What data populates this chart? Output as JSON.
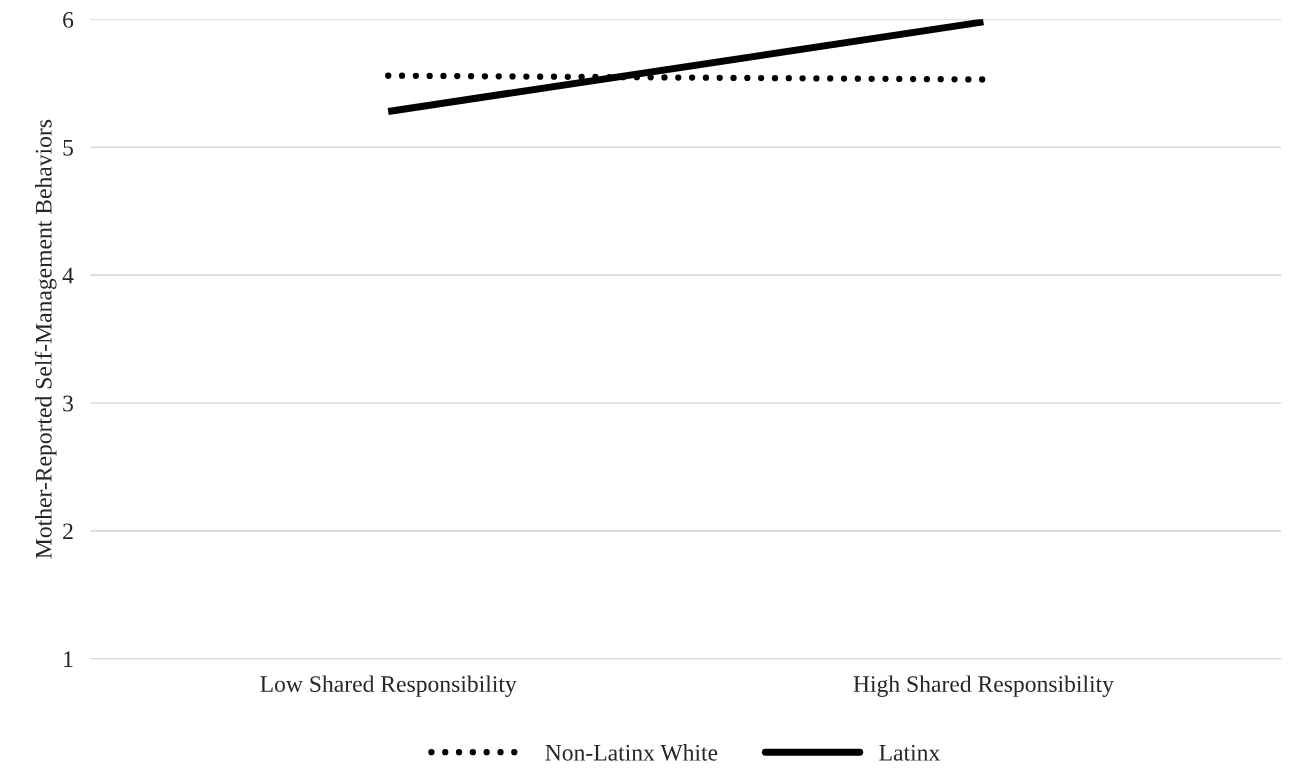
{
  "chart_data": {
    "type": "line",
    "ylabel": "Mother-Reported Self-Management Behaviors",
    "categories": [
      "Low Shared Responsibility",
      "High Shared Responsibility"
    ],
    "series": [
      {
        "name": "Non-Latinx White",
        "color": "#000000",
        "values": [
          5.56,
          5.53
        ],
        "line_style": "dotted"
      },
      {
        "name": "Latinx",
        "color": "#000000",
        "values": [
          5.28,
          5.98
        ],
        "line_style": "solid"
      }
    ],
    "ylim": [
      1,
      6
    ],
    "yticks": [
      1,
      2,
      3,
      4,
      5,
      6
    ],
    "grid": "y",
    "legend": "bottom",
    "marker": "none"
  }
}
